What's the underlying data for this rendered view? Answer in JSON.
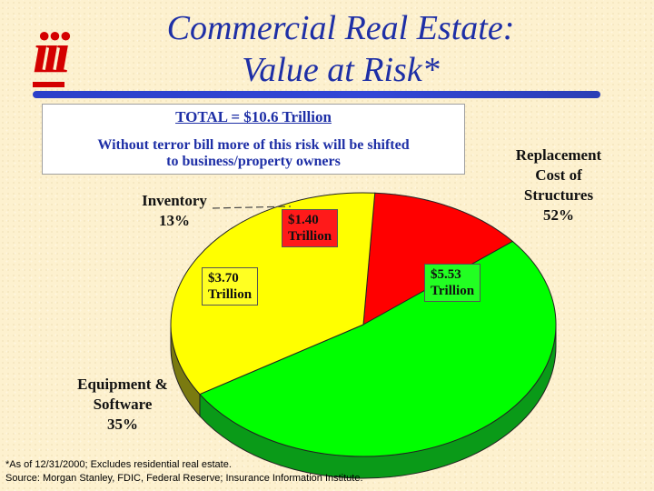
{
  "logo": {
    "text": "iii"
  },
  "title": {
    "line1": "Commercial Real Estate:",
    "line2": "Value at Risk*"
  },
  "callout": {
    "total": "TOTAL = $10.6 Trillion",
    "note_line1": "Without terror bill more of this risk will be shifted",
    "note_line2": "to business/property owners"
  },
  "colors": {
    "inventory": "#ff0000",
    "equipment": "#ffff00",
    "replacement": "#00ff00",
    "title": "#1e2fa6"
  },
  "chart_data": {
    "type": "pie",
    "title": "",
    "slices": [
      {
        "name": "Inventory",
        "percent_label": "13%",
        "value": 1.4,
        "value_label": "$1.40",
        "unit": "Trillion",
        "color": "#ff0000"
      },
      {
        "name": "Replacement Cost of Structures",
        "percent_label": "52%",
        "value": 5.53,
        "value_label": "$5.53",
        "unit": "Trillion",
        "color": "#00ff00"
      },
      {
        "name": "Equipment & Software",
        "percent_label": "35%",
        "value": 3.7,
        "value_label": "$3.70",
        "unit": "Trillion",
        "color": "#ffff00"
      }
    ],
    "legend": "none"
  },
  "labels": {
    "inventory": [
      "Inventory",
      "13%"
    ],
    "replacement": [
      "Replacement",
      "Cost of",
      "Structures",
      "52%"
    ],
    "equipment": [
      "Equipment &",
      "Software",
      "35%"
    ]
  },
  "footer": {
    "line1": "*As of 12/31/2000; Excludes residential real estate.",
    "line2": "Source: Morgan Stanley, FDIC, Federal Reserve; Insurance Information Institute."
  }
}
